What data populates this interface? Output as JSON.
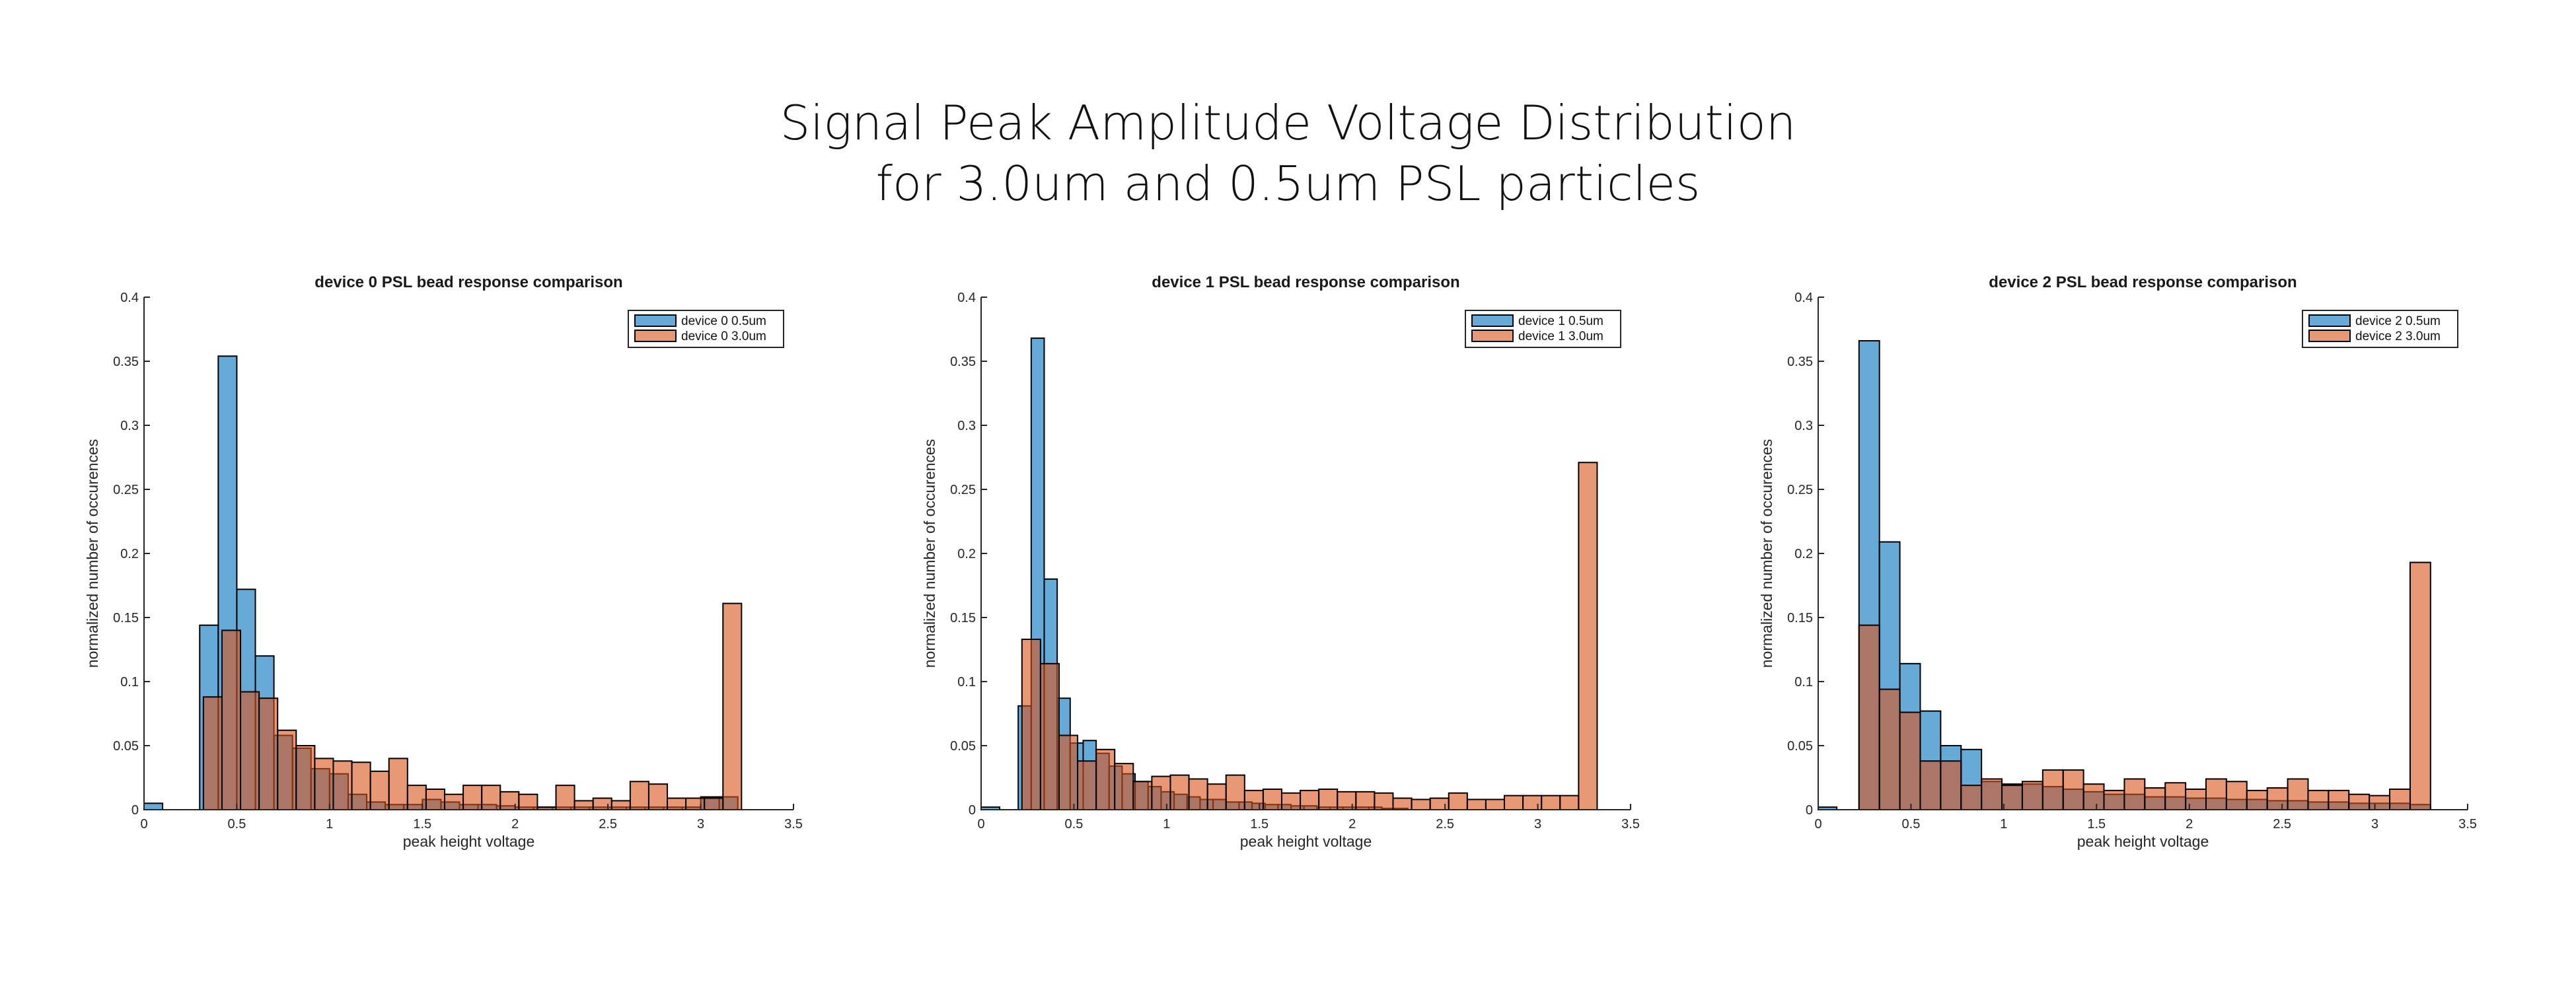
{
  "title": {
    "line1": "Signal Peak Amplitude Voltage Distribution",
    "line2": "for 3.0um and 0.5um PSL particles"
  },
  "colors": {
    "series_0_5um": "#0072BD",
    "series_3_0um": "#D95319",
    "axis": "#262626"
  },
  "chart_data": [
    {
      "type": "bar",
      "title": "device 0 PSL bead response comparison",
      "xlabel": "peak height voltage",
      "ylabel": "normalized number of occurences",
      "xlim": [
        0,
        3.5
      ],
      "ylim": [
        0,
        0.4
      ],
      "xticks": [
        "0",
        "0.5",
        "1",
        "1.5",
        "2",
        "2.5",
        "3",
        "3.5"
      ],
      "yticks": [
        "0",
        "0.05",
        "0.1",
        "0.15",
        "0.2",
        "0.25",
        "0.3",
        "0.35",
        "0.4"
      ],
      "legend_position": "top-right",
      "series": [
        {
          "name": "device 0 0.5um",
          "bin_edges": [
            0.0,
            0.1,
            0.2,
            0.3,
            0.4,
            0.5,
            0.6,
            0.7,
            0.8,
            0.9,
            1.0,
            1.1,
            1.2,
            1.3,
            1.4,
            1.5,
            1.6,
            1.7,
            1.8,
            1.9,
            2.0,
            2.1,
            2.2,
            2.3,
            2.4,
            2.5,
            2.6,
            2.7,
            2.8,
            2.9,
            3.0,
            3.1,
            3.2
          ],
          "values": [
            0.005,
            0,
            0,
            0.144,
            0.354,
            0.172,
            0.12,
            0.058,
            0.048,
            0.032,
            0.028,
            0.012,
            0.006,
            0.004,
            0.004,
            0.008,
            0.006,
            0.004,
            0.004,
            0.003,
            0.002,
            0.002,
            0.002,
            0.002,
            0.002,
            0.002,
            0.002,
            0.002,
            0.002,
            0.002,
            0.01,
            0.01
          ]
        },
        {
          "name": "device 0 3.0um",
          "bin_edges": [
            0.32,
            0.42,
            0.52,
            0.62,
            0.72,
            0.82,
            0.92,
            1.02,
            1.12,
            1.22,
            1.32,
            1.42,
            1.52,
            1.62,
            1.72,
            1.82,
            1.92,
            2.02,
            2.12,
            2.22,
            2.32,
            2.42,
            2.52,
            2.62,
            2.72,
            2.82,
            2.92,
            3.02,
            3.12,
            3.22,
            3.32
          ],
          "values": [
            0.088,
            0.14,
            0.092,
            0.087,
            0.062,
            0.05,
            0.04,
            0.038,
            0.037,
            0.03,
            0.04,
            0.019,
            0.016,
            0.012,
            0.019,
            0.019,
            0.014,
            0.012,
            0.002,
            0.019,
            0.007,
            0.009,
            0.007,
            0.022,
            0.02,
            0.009,
            0.009,
            0.009,
            0.161,
            0.0
          ]
        }
      ]
    },
    {
      "type": "bar",
      "title": "device 1 PSL bead response comparison",
      "xlabel": "peak height voltage",
      "ylabel": "normalized number of occurences",
      "xlim": [
        0,
        3.5
      ],
      "ylim": [
        0,
        0.4
      ],
      "xticks": [
        "0",
        "0.5",
        "1",
        "1.5",
        "2",
        "2.5",
        "3",
        "3.5"
      ],
      "yticks": [
        "0",
        "0.05",
        "0.1",
        "0.15",
        "0.2",
        "0.25",
        "0.3",
        "0.35",
        "0.4"
      ],
      "legend_position": "top-right",
      "series": [
        {
          "name": "device 1 0.5um",
          "bin_edges": [
            0.0,
            0.1,
            0.2,
            0.27,
            0.34,
            0.41,
            0.48,
            0.55,
            0.62,
            0.69,
            0.76,
            0.83,
            0.9,
            0.97,
            1.04,
            1.11,
            1.18,
            1.25,
            1.32,
            1.39,
            1.46,
            1.53,
            1.6,
            1.67,
            1.74,
            1.81,
            1.88,
            1.95,
            2.02,
            2.09,
            2.16,
            2.23,
            2.3
          ],
          "values": [
            0.002,
            0,
            0.081,
            0.368,
            0.18,
            0.087,
            0.052,
            0.054,
            0.044,
            0.034,
            0.028,
            0.022,
            0.018,
            0.014,
            0.012,
            0.01,
            0.008,
            0.008,
            0.006,
            0.006,
            0.005,
            0.004,
            0.004,
            0.003,
            0.003,
            0.002,
            0.002,
            0.002,
            0.002,
            0.002,
            0.001,
            0.001
          ]
        },
        {
          "name": "device 1 3.0um",
          "bin_edges": [
            0.22,
            0.32,
            0.42,
            0.52,
            0.62,
            0.72,
            0.82,
            0.92,
            1.02,
            1.12,
            1.22,
            1.32,
            1.42,
            1.52,
            1.62,
            1.72,
            1.82,
            1.92,
            2.02,
            2.12,
            2.22,
            2.32,
            2.42,
            2.52,
            2.62,
            2.72,
            2.82,
            2.92,
            3.02,
            3.12,
            3.22,
            3.32
          ],
          "values": [
            0.133,
            0.114,
            0.058,
            0.038,
            0.047,
            0.036,
            0.022,
            0.026,
            0.027,
            0.024,
            0.02,
            0.027,
            0.015,
            0.016,
            0.013,
            0.015,
            0.016,
            0.014,
            0.014,
            0.013,
            0.009,
            0.008,
            0.009,
            0.013,
            0.008,
            0.008,
            0.011,
            0.011,
            0.011,
            0.011,
            0.271
          ]
        }
      ]
    },
    {
      "type": "bar",
      "title": "device 2 PSL bead response comparison",
      "xlabel": "peak height voltage",
      "ylabel": "normalized number of occurences",
      "xlim": [
        0,
        3.5
      ],
      "ylim": [
        0,
        0.4
      ],
      "xticks": [
        "0",
        "0.5",
        "1",
        "1.5",
        "2",
        "2.5",
        "3",
        "3.5"
      ],
      "yticks": [
        "0",
        "0.05",
        "0.1",
        "0.15",
        "0.2",
        "0.25",
        "0.3",
        "0.35",
        "0.4"
      ],
      "legend_position": "top-right",
      "series": [
        {
          "name": "device 2 0.5um",
          "bin_edges": [
            0.0,
            0.1,
            0.22,
            0.33,
            0.44,
            0.55,
            0.66,
            0.77,
            0.88,
            0.99,
            1.1,
            1.21,
            1.32,
            1.43,
            1.54,
            1.65,
            1.76,
            1.87,
            1.98,
            2.09,
            2.2,
            2.31,
            2.42,
            2.53,
            2.64,
            2.75,
            2.86,
            2.97,
            3.08,
            3.19,
            3.3
          ],
          "values": [
            0.002,
            0,
            0.366,
            0.209,
            0.114,
            0.077,
            0.05,
            0.047,
            0.022,
            0.02,
            0.02,
            0.018,
            0.016,
            0.014,
            0.012,
            0.012,
            0.01,
            0.01,
            0.009,
            0.009,
            0.008,
            0.008,
            0.007,
            0.007,
            0.006,
            0.006,
            0.005,
            0.005,
            0.005,
            0.004
          ]
        },
        {
          "name": "device 2 3.0um",
          "bin_edges": [
            0.22,
            0.33,
            0.44,
            0.55,
            0.66,
            0.77,
            0.88,
            0.99,
            1.1,
            1.21,
            1.32,
            1.43,
            1.54,
            1.65,
            1.76,
            1.87,
            1.98,
            2.09,
            2.2,
            2.31,
            2.42,
            2.53,
            2.64,
            2.75,
            2.86,
            2.97,
            3.08,
            3.19,
            3.3
          ],
          "values": [
            0.144,
            0.094,
            0.076,
            0.038,
            0.038,
            0.019,
            0.024,
            0.019,
            0.022,
            0.031,
            0.031,
            0.02,
            0.015,
            0.024,
            0.017,
            0.021,
            0.016,
            0.024,
            0.022,
            0.015,
            0.017,
            0.024,
            0.015,
            0.015,
            0.012,
            0.011,
            0.016,
            0.193
          ]
        }
      ]
    }
  ]
}
